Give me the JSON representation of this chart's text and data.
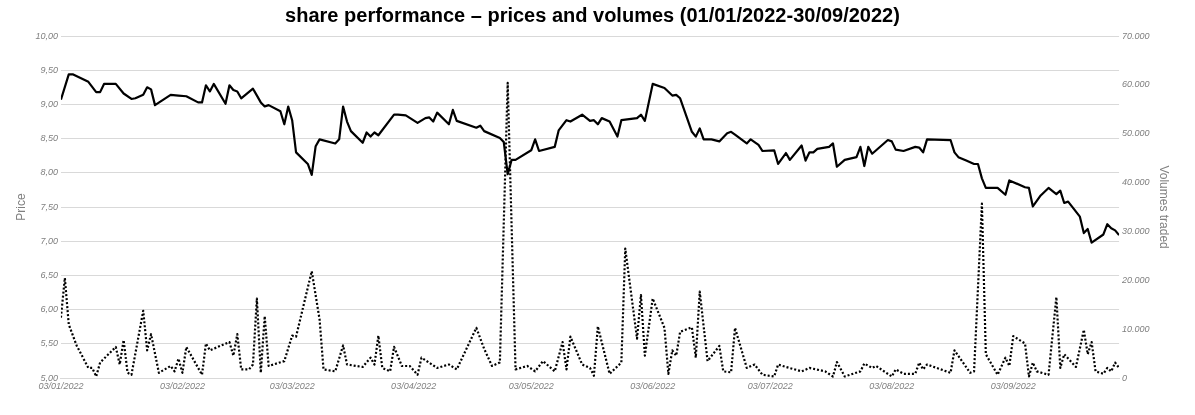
{
  "chart_data": {
    "type": "line",
    "title": "share performance – prices and volumes (01/01/2022-30/09/2022)",
    "ylabel": "Price",
    "y2label": "Volumes traded",
    "xlim": [
      "2022-01-03",
      "2022-09-30"
    ],
    "xticks": [
      {
        "value": "2022-01-03",
        "label": "03/01/2022"
      },
      {
        "value": "2022-02-03",
        "label": "03/02/2022"
      },
      {
        "value": "2022-03-03",
        "label": "03/03/2022"
      },
      {
        "value": "2022-04-03",
        "label": "03/04/2022"
      },
      {
        "value": "2022-05-03",
        "label": "03/05/2022"
      },
      {
        "value": "2022-06-03",
        "label": "03/06/2022"
      },
      {
        "value": "2022-07-03",
        "label": "03/07/2022"
      },
      {
        "value": "2022-08-03",
        "label": "03/08/2022"
      },
      {
        "value": "2022-09-03",
        "label": "03/09/2022"
      }
    ],
    "ylim": [
      5,
      10
    ],
    "yticks": [
      {
        "value": 5,
        "label": "5,00"
      },
      {
        "value": 5.5,
        "label": "5,50"
      },
      {
        "value": 6,
        "label": "6,00"
      },
      {
        "value": 6.5,
        "label": "6,50"
      },
      {
        "value": 7,
        "label": "7,00"
      },
      {
        "value": 7.5,
        "label": "7,50"
      },
      {
        "value": 8,
        "label": "8,00"
      },
      {
        "value": 8.5,
        "label": "8,50"
      },
      {
        "value": 9,
        "label": "9,00"
      },
      {
        "value": 9.5,
        "label": "9,50"
      },
      {
        "value": 10,
        "label": "10,00"
      }
    ],
    "y2lim": [
      0,
      70000
    ],
    "y2ticks": [
      0,
      {
        "value": 10000,
        "label": "10.000"
      },
      {
        "value": 20000,
        "label": "20.000"
      },
      {
        "value": 30000,
        "label": "30.000"
      },
      {
        "value": 40000,
        "label": "40.000"
      },
      {
        "value": 50000,
        "label": "50.000"
      },
      {
        "value": 60000,
        "label": "60.000"
      },
      {
        "value": 70000,
        "label": "70.000"
      }
    ],
    "grid": "y",
    "marker": "none",
    "series": [
      {
        "color": "#000000",
        "line_style": "solid",
        "axis": "y",
        "x": [
          "2022-01-03",
          "2022-01-05",
          "2022-01-06",
          "2022-01-10",
          "2022-01-12",
          "2022-01-13",
          "2022-01-14",
          "2022-01-17",
          "2022-01-19",
          "2022-01-21",
          "2022-01-22",
          "2022-01-24",
          "2022-01-25",
          "2022-01-26",
          "2022-01-27",
          "2022-01-31",
          "2022-02-02",
          "2022-02-04",
          "2022-02-07",
          "2022-02-08",
          "2022-02-09",
          "2022-02-10",
          "2022-02-11",
          "2022-02-14",
          "2022-02-15",
          "2022-02-16",
          "2022-02-17",
          "2022-02-18",
          "2022-02-21",
          "2022-02-23",
          "2022-02-24",
          "2022-02-25",
          "2022-02-28",
          "2022-03-01",
          "2022-03-02",
          "2022-03-03",
          "2022-03-04",
          "2022-03-07",
          "2022-03-08",
          "2022-03-09",
          "2022-03-10",
          "2022-03-14",
          "2022-03-15",
          "2022-03-16",
          "2022-03-17",
          "2022-03-18",
          "2022-03-21",
          "2022-03-22",
          "2022-03-23",
          "2022-03-24",
          "2022-03-25",
          "2022-03-29",
          "2022-03-30",
          "2022-04-01",
          "2022-04-04",
          "2022-04-06",
          "2022-04-07",
          "2022-04-08",
          "2022-04-09",
          "2022-04-12",
          "2022-04-13",
          "2022-04-14",
          "2022-04-19",
          "2022-04-20",
          "2022-04-21",
          "2022-04-25",
          "2022-04-26",
          "2022-04-27",
          "2022-04-28",
          "2022-04-29",
          "2022-05-03",
          "2022-05-04",
          "2022-05-05",
          "2022-05-09",
          "2022-05-10",
          "2022-05-12",
          "2022-05-13",
          "2022-05-16",
          "2022-05-18",
          "2022-05-19",
          "2022-05-20",
          "2022-05-21",
          "2022-05-23",
          "2022-05-25",
          "2022-05-26",
          "2022-05-30",
          "2022-05-31",
          "2022-06-01",
          "2022-06-03",
          "2022-06-06",
          "2022-06-08",
          "2022-06-09",
          "2022-06-10",
          "2022-06-13",
          "2022-06-14",
          "2022-06-15",
          "2022-06-16",
          "2022-06-18",
          "2022-06-20",
          "2022-06-22",
          "2022-06-23",
          "2022-06-24",
          "2022-06-27",
          "2022-06-28",
          "2022-06-30",
          "2022-07-01",
          "2022-07-04",
          "2022-07-05",
          "2022-07-07",
          "2022-07-08",
          "2022-07-11",
          "2022-07-12",
          "2022-07-13",
          "2022-07-14",
          "2022-07-15",
          "2022-07-18",
          "2022-07-19",
          "2022-07-20",
          "2022-07-22",
          "2022-07-25",
          "2022-07-26",
          "2022-07-27",
          "2022-07-28",
          "2022-07-29",
          "2022-08-02",
          "2022-08-03",
          "2022-08-04",
          "2022-08-06",
          "2022-08-09",
          "2022-08-10",
          "2022-08-11",
          "2022-08-12",
          "2022-08-18",
          "2022-08-19",
          "2022-08-20",
          "2022-08-22",
          "2022-08-24",
          "2022-08-25",
          "2022-08-26",
          "2022-08-27",
          "2022-08-30",
          "2022-09-01",
          "2022-09-02",
          "2022-09-06",
          "2022-09-07",
          "2022-09-08",
          "2022-09-10",
          "2022-09-12",
          "2022-09-14",
          "2022-09-15",
          "2022-09-16",
          "2022-09-17",
          "2022-09-20",
          "2022-09-21",
          "2022-09-22",
          "2022-09-23",
          "2022-09-26",
          "2022-09-27",
          "2022-09-28",
          "2022-09-29",
          "2022-09-30"
        ],
        "values": [
          9.07,
          9.44,
          9.44,
          9.33,
          9.18,
          9.18,
          9.3,
          9.3,
          9.16,
          9.08,
          9.09,
          9.14,
          9.25,
          9.22,
          8.99,
          9.14,
          9.13,
          9.12,
          9.03,
          9.03,
          9.28,
          9.19,
          9.3,
          9.01,
          9.28,
          9.21,
          9.19,
          9.09,
          9.23,
          9.03,
          8.97,
          8.99,
          8.9,
          8.71,
          8.97,
          8.77,
          8.3,
          8.13,
          7.97,
          8.39,
          8.49,
          8.43,
          8.49,
          8.97,
          8.75,
          8.61,
          8.44,
          8.59,
          8.53,
          8.59,
          8.55,
          8.85,
          8.85,
          8.84,
          8.73,
          8.8,
          8.81,
          8.75,
          8.88,
          8.71,
          8.92,
          8.76,
          8.66,
          8.69,
          8.61,
          8.51,
          8.45,
          7.98,
          8.19,
          8.19,
          8.33,
          8.49,
          8.32,
          8.38,
          8.62,
          8.77,
          8.75,
          8.85,
          8.76,
          8.77,
          8.71,
          8.8,
          8.75,
          8.53,
          8.77,
          8.8,
          8.85,
          8.76,
          9.3,
          9.24,
          9.13,
          9.14,
          9.09,
          8.6,
          8.53,
          8.65,
          8.49,
          8.49,
          8.46,
          8.58,
          8.6,
          8.56,
          8.43,
          8.49,
          8.41,
          8.32,
          8.33,
          8.13,
          8.29,
          8.19,
          8.4,
          8.18,
          8.3,
          8.3,
          8.35,
          8.38,
          8.43,
          8.09,
          8.19,
          8.23,
          8.38,
          8.1,
          8.38,
          8.28,
          8.48,
          8.46,
          8.34,
          8.32,
          8.38,
          8.37,
          8.3,
          8.49,
          8.48,
          8.3,
          8.23,
          8.18,
          8.13,
          8.13,
          7.92,
          7.78,
          7.78,
          7.68,
          7.89,
          7.79,
          7.78,
          7.51,
          7.67,
          7.78,
          7.69,
          7.74,
          7.56,
          7.58,
          7.36,
          7.12,
          7.18,
          6.98,
          7.1,
          7.25,
          7.19,
          7.16,
          7.09
        ]
      },
      {
        "color": "#000000",
        "line_style": "dotted",
        "axis": "y2",
        "x": [
          "2022-01-03",
          "2022-01-04",
          "2022-01-05",
          "2022-01-07",
          "2022-01-10",
          "2022-01-11",
          "2022-01-12",
          "2022-01-13",
          "2022-01-17",
          "2022-01-18",
          "2022-01-19",
          "2022-01-20",
          "2022-01-21",
          "2022-01-24",
          "2022-01-25",
          "2022-01-26",
          "2022-01-28",
          "2022-01-31",
          "2022-02-01",
          "2022-02-02",
          "2022-02-03",
          "2022-02-04",
          "2022-02-08",
          "2022-02-09",
          "2022-02-10",
          "2022-02-15",
          "2022-02-16",
          "2022-02-17",
          "2022-02-18",
          "2022-02-20",
          "2022-02-21",
          "2022-02-22",
          "2022-02-23",
          "2022-02-24",
          "2022-02-25",
          "2022-03-01",
          "2022-03-03",
          "2022-03-04",
          "2022-03-08",
          "2022-03-10",
          "2022-03-11",
          "2022-03-14",
          "2022-03-16",
          "2022-03-17",
          "2022-03-21",
          "2022-03-23",
          "2022-03-24",
          "2022-03-25",
          "2022-03-26",
          "2022-03-28",
          "2022-03-29",
          "2022-03-31",
          "2022-04-02",
          "2022-04-04",
          "2022-04-05",
          "2022-04-09",
          "2022-04-12",
          "2022-04-14",
          "2022-04-19",
          "2022-04-21",
          "2022-04-23",
          "2022-04-25",
          "2022-04-27",
          "2022-04-29",
          "2022-05-02",
          "2022-05-04",
          "2022-05-06",
          "2022-05-09",
          "2022-05-11",
          "2022-05-12",
          "2022-05-13",
          "2022-05-16",
          "2022-05-18",
          "2022-05-19",
          "2022-05-20",
          "2022-05-23",
          "2022-05-26",
          "2022-05-27",
          "2022-05-30",
          "2022-05-31",
          "2022-06-01",
          "2022-06-03",
          "2022-06-06",
          "2022-06-07",
          "2022-06-08",
          "2022-06-09",
          "2022-06-10",
          "2022-06-13",
          "2022-06-14",
          "2022-06-15",
          "2022-06-17",
          "2022-06-20",
          "2022-06-21",
          "2022-06-23",
          "2022-06-24",
          "2022-06-27",
          "2022-06-29",
          "2022-07-01",
          "2022-07-04",
          "2022-07-05",
          "2022-07-07",
          "2022-07-11",
          "2022-07-13",
          "2022-07-17",
          "2022-07-19",
          "2022-07-20",
          "2022-07-22",
          "2022-07-26",
          "2022-07-27",
          "2022-07-29",
          "2022-07-30",
          "2022-08-03",
          "2022-08-04",
          "2022-08-06",
          "2022-08-09",
          "2022-08-10",
          "2022-08-11",
          "2022-08-12",
          "2022-08-18",
          "2022-08-19",
          "2022-08-23",
          "2022-08-24",
          "2022-08-26",
          "2022-08-27",
          "2022-08-30",
          "2022-09-01",
          "2022-09-02",
          "2022-09-03",
          "2022-09-06",
          "2022-09-07",
          "2022-09-08",
          "2022-09-09",
          "2022-09-12",
          "2022-09-14",
          "2022-09-15",
          "2022-09-16",
          "2022-09-19",
          "2022-09-21",
          "2022-09-22",
          "2022-09-23",
          "2022-09-24",
          "2022-09-26",
          "2022-09-27",
          "2022-09-28",
          "2022-09-29",
          "2022-09-30"
        ],
        "values": [
          12400,
          20500,
          11000,
          6700,
          2100,
          2100,
          350,
          3200,
          6400,
          2800,
          7800,
          1100,
          700,
          13800,
          5700,
          9000,
          1100,
          2500,
          1400,
          4000,
          1100,
          6400,
          700,
          7100,
          5700,
          7400,
          4600,
          9000,
          1800,
          1800,
          2800,
          16300,
          1100,
          12700,
          2500,
          3500,
          8700,
          8500,
          21900,
          12000,
          1800,
          1400,
          6700,
          2800,
          2300,
          4200,
          2800,
          8700,
          2100,
          1400,
          6400,
          2500,
          2500,
          700,
          4200,
          2100,
          2800,
          1800,
          10300,
          6000,
          2500,
          3200,
          60400,
          1800,
          2500,
          1400,
          3500,
          1400,
          7400,
          1800,
          8500,
          2800,
          2100,
          500,
          10600,
          900,
          3200,
          26500,
          8100,
          17000,
          4600,
          16300,
          10300,
          900,
          5700,
          4600,
          9500,
          10400,
          4200,
          17700,
          3500,
          6600,
          1400,
          1200,
          10300,
          2100,
          2800,
          700,
          350,
          2800,
          2300,
          1400,
          2100,
          1400,
          350,
          3300,
          350,
          1400,
          3000,
          2100,
          2500,
          350,
          1800,
          900,
          900,
          3200,
          1800,
          2800,
          1100,
          5700,
          1100,
          1400,
          35700,
          4900,
          700,
          4200,
          2500,
          8600,
          7100,
          350,
          3200,
          1400,
          700,
          16600,
          2100,
          4900,
          2300,
          9900,
          4900,
          7400,
          1400,
          900,
          2100,
          1400,
          3200,
          2100
        ]
      }
    ]
  }
}
